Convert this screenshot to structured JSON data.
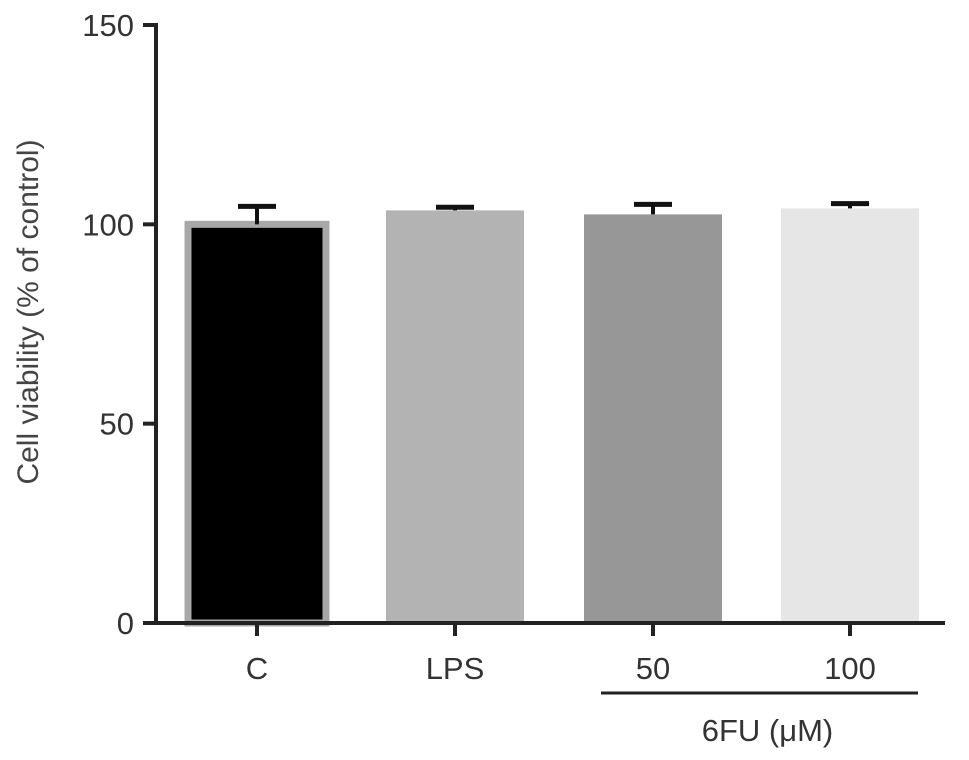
{
  "chart_data": {
    "type": "bar",
    "ylabel": "Cell viability (% of control)",
    "xlabel": "",
    "ylim": [
      0,
      150
    ],
    "yticks": [
      0,
      50,
      100,
      150
    ],
    "categories": [
      "C",
      "LPS",
      "50",
      "100"
    ],
    "values": [
      100,
      103.5,
      102.5,
      104
    ],
    "errors": [
      4.5,
      0.8,
      2.5,
      1.2
    ],
    "colors": [
      "#000000",
      "#b3b3b3",
      "#979797",
      "#e6e6e6"
    ],
    "group_label": "6FU (μM)",
    "group_categories": [
      "50",
      "100"
    ],
    "grid": false
  }
}
